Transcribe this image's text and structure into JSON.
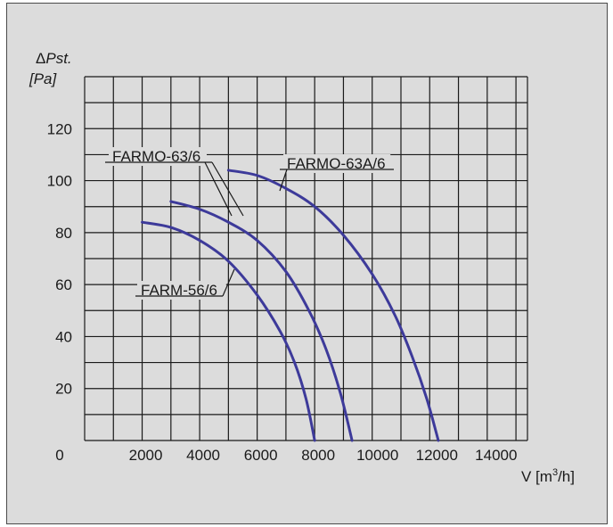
{
  "chart_data": {
    "type": "line",
    "ylabel_line1": "ΔPst.",
    "ylabel_line2": "[Pa]",
    "xlabel": "V [m³/h]",
    "xlabel_pre": "V [m",
    "xlabel_sup": "3",
    "xlabel_post": "/h]",
    "xlim": [
      0,
      15400
    ],
    "ylim": [
      0,
      140
    ],
    "grid": true,
    "x_ticks": [
      {
        "value": 0,
        "label": "0"
      },
      {
        "value": 2000,
        "label": "2000"
      },
      {
        "value": 4000,
        "label": "4000"
      },
      {
        "value": 6000,
        "label": "6000"
      },
      {
        "value": 8000,
        "label": "8000"
      },
      {
        "value": 10000,
        "label": "10000"
      },
      {
        "value": 12000,
        "label": "12000"
      },
      {
        "value": 14000,
        "label": "14000"
      }
    ],
    "y_ticks": [
      {
        "value": 20,
        "label": "20"
      },
      {
        "value": 40,
        "label": "40"
      },
      {
        "value": 60,
        "label": "60"
      },
      {
        "value": 80,
        "label": "80"
      },
      {
        "value": 100,
        "label": "100"
      },
      {
        "value": 120,
        "label": "120"
      }
    ],
    "series": [
      {
        "name": "FARM-56/6",
        "x": [
          2000,
          3000,
          4000,
          5000,
          6000,
          6800,
          7300,
          7700,
          8000
        ],
        "y": [
          84,
          82,
          77,
          69,
          56,
          42,
          30,
          16,
          0
        ]
      },
      {
        "name": "FARMO-63/6",
        "x": [
          3000,
          4000,
          5000,
          6000,
          7000,
          7800,
          8400,
          8900,
          9300
        ],
        "y": [
          92,
          89,
          84,
          77,
          65,
          50,
          35,
          18,
          0
        ]
      },
      {
        "name": "FARMO-63A/6",
        "x": [
          5000,
          6000,
          7000,
          8000,
          9000,
          10000,
          10800,
          11400,
          11900,
          12300
        ],
        "y": [
          104,
          102,
          97,
          90,
          79,
          64,
          48,
          32,
          16,
          0
        ]
      }
    ],
    "color": "#3d3a9a"
  }
}
